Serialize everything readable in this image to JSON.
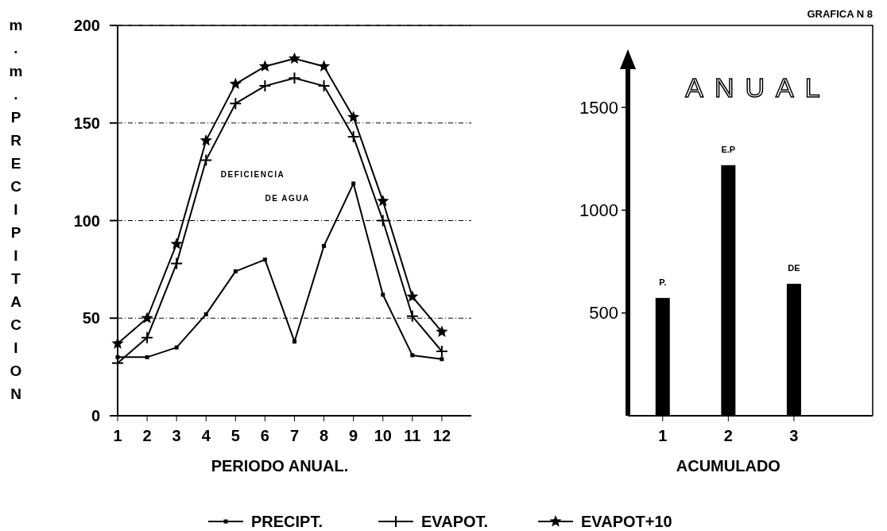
{
  "chart_data": [
    {
      "type": "line",
      "xlabel": "PERIODO ANUAL.",
      "ylabel": "m.m.PRECIPITACION",
      "x": [
        1,
        2,
        3,
        4,
        5,
        6,
        7,
        8,
        9,
        10,
        11,
        12
      ],
      "xlim": [
        1,
        13
      ],
      "xticks": [
        1,
        2,
        3,
        4,
        5,
        6,
        7,
        8,
        9,
        10,
        11,
        12
      ],
      "ylim": [
        0,
        200
      ],
      "yticks": [
        0,
        50,
        100,
        150,
        200
      ],
      "grid": "y",
      "legend": "bottom",
      "annotations": [
        "DEFICIENCIA",
        "DE AGUA"
      ],
      "series": [
        {
          "name": "PRECIPT.",
          "color": "#000000",
          "marker": "square",
          "values": [
            30,
            30,
            35,
            52,
            74,
            80,
            38,
            87,
            119,
            62,
            31,
            29
          ]
        },
        {
          "name": "EVAPOT.",
          "color": "#000000",
          "marker": "cross",
          "values": [
            27,
            40,
            78,
            131,
            160,
            169,
            173,
            169,
            143,
            100,
            51,
            33
          ]
        },
        {
          "name": "EVAPOT+10",
          "color": "#000000",
          "marker": "star",
          "values": [
            37,
            50,
            88,
            141,
            170,
            179,
            183,
            179,
            153,
            110,
            61,
            43
          ]
        }
      ]
    },
    {
      "type": "bar",
      "title": "ANUAL",
      "xlabel": "ACUMULADO",
      "x": [
        1,
        2,
        3
      ],
      "values": [
        573,
        1219,
        642
      ],
      "color": "#000000",
      "xlim": [
        0.47,
        4.2
      ],
      "xticks": [
        1,
        2,
        3
      ],
      "ylim": [
        0,
        1690
      ],
      "yticks": [
        500,
        1000,
        1500
      ],
      "annotations": [
        "GRAFICA N 8",
        {
          "text": "P.",
          "x": 1,
          "y": 573
        },
        {
          "text": "E.P",
          "x": 2,
          "y": 1219
        },
        {
          "text": "DE",
          "x": 3,
          "y": 642
        }
      ]
    }
  ]
}
